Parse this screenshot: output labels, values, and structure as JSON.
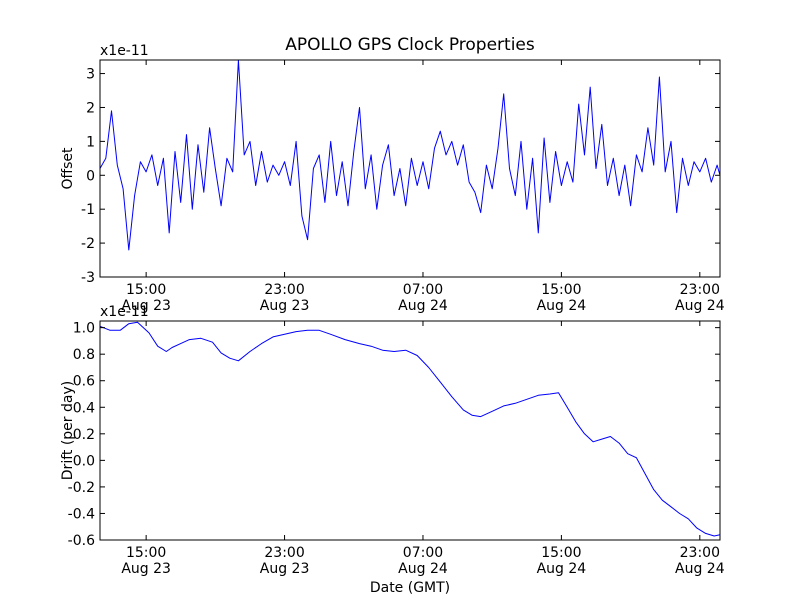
{
  "title": "APOLLO GPS Clock Properties",
  "colors": {
    "series": "#0000ff",
    "axes": "#000000",
    "background": "#ffffff"
  },
  "chart_data": [
    {
      "type": "line",
      "ylabel": "Offset",
      "xlabel": "",
      "offset_label": "x1e-11",
      "ylim": [
        -3,
        3.4
      ],
      "yticks": [
        "3",
        "2",
        "1",
        "0",
        "-1",
        "-2",
        "-3"
      ],
      "ytick_values": [
        3,
        2,
        1,
        0,
        -1,
        -2,
        -3
      ],
      "xlim": [
        "2015-08-23T12:20",
        "2015-08-25T00:10"
      ],
      "xticks": [
        {
          "at": "2015-08-23T15:00",
          "time": "15:00",
          "date": "Aug 23"
        },
        {
          "at": "2015-08-23T23:00",
          "time": "23:00",
          "date": "Aug 23"
        },
        {
          "at": "2015-08-24T07:00",
          "time": "07:00",
          "date": "Aug 24"
        },
        {
          "at": "2015-08-24T15:00",
          "time": "15:00",
          "date": "Aug 24"
        },
        {
          "at": "2015-08-24T23:00",
          "time": "23:00",
          "date": "Aug 24"
        }
      ],
      "series": [
        {
          "color": "#0000ff",
          "points": [
            [
              "2015-08-23T12:20",
              0.2
            ],
            [
              "2015-08-23T12:40",
              0.5
            ],
            [
              "2015-08-23T13:00",
              1.9
            ],
            [
              "2015-08-23T13:20",
              0.3
            ],
            [
              "2015-08-23T13:40",
              -0.4
            ],
            [
              "2015-08-23T14:00",
              -2.2
            ],
            [
              "2015-08-23T14:20",
              -0.6
            ],
            [
              "2015-08-23T14:40",
              0.4
            ],
            [
              "2015-08-23T15:00",
              0.1
            ],
            [
              "2015-08-23T15:20",
              0.6
            ],
            [
              "2015-08-23T15:40",
              -0.3
            ],
            [
              "2015-08-23T16:00",
              0.5
            ],
            [
              "2015-08-23T16:20",
              -1.7
            ],
            [
              "2015-08-23T16:40",
              0.7
            ],
            [
              "2015-08-23T17:00",
              -0.8
            ],
            [
              "2015-08-23T17:20",
              1.2
            ],
            [
              "2015-08-23T17:40",
              -1.0
            ],
            [
              "2015-08-23T18:00",
              0.9
            ],
            [
              "2015-08-23T18:20",
              -0.5
            ],
            [
              "2015-08-23T18:40",
              1.4
            ],
            [
              "2015-08-23T19:00",
              0.2
            ],
            [
              "2015-08-23T19:20",
              -0.9
            ],
            [
              "2015-08-23T19:40",
              0.5
            ],
            [
              "2015-08-23T20:00",
              0.1
            ],
            [
              "2015-08-23T20:20",
              3.4
            ],
            [
              "2015-08-23T20:40",
              0.6
            ],
            [
              "2015-08-23T21:00",
              1.0
            ],
            [
              "2015-08-23T21:20",
              -0.3
            ],
            [
              "2015-08-23T21:40",
              0.7
            ],
            [
              "2015-08-23T22:00",
              -0.2
            ],
            [
              "2015-08-23T22:20",
              0.3
            ],
            [
              "2015-08-23T22:40",
              0.0
            ],
            [
              "2015-08-23T23:00",
              0.4
            ],
            [
              "2015-08-23T23:20",
              -0.3
            ],
            [
              "2015-08-23T23:40",
              1.0
            ],
            [
              "2015-08-24T00:00",
              -1.2
            ],
            [
              "2015-08-24T00:20",
              -1.9
            ],
            [
              "2015-08-24T00:40",
              0.2
            ],
            [
              "2015-08-24T01:00",
              0.6
            ],
            [
              "2015-08-24T01:20",
              -0.8
            ],
            [
              "2015-08-24T01:40",
              1.0
            ],
            [
              "2015-08-24T02:00",
              -0.6
            ],
            [
              "2015-08-24T02:20",
              0.4
            ],
            [
              "2015-08-24T02:40",
              -0.9
            ],
            [
              "2015-08-24T03:00",
              0.7
            ],
            [
              "2015-08-24T03:20",
              2.0
            ],
            [
              "2015-08-24T03:40",
              -0.4
            ],
            [
              "2015-08-24T04:00",
              0.6
            ],
            [
              "2015-08-24T04:20",
              -1.0
            ],
            [
              "2015-08-24T04:40",
              0.3
            ],
            [
              "2015-08-24T05:00",
              0.9
            ],
            [
              "2015-08-24T05:20",
              -0.6
            ],
            [
              "2015-08-24T05:40",
              0.2
            ],
            [
              "2015-08-24T06:00",
              -0.9
            ],
            [
              "2015-08-24T06:20",
              0.5
            ],
            [
              "2015-08-24T06:40",
              -0.3
            ],
            [
              "2015-08-24T07:00",
              0.4
            ],
            [
              "2015-08-24T07:20",
              -0.4
            ],
            [
              "2015-08-24T07:40",
              0.8
            ],
            [
              "2015-08-24T08:00",
              1.3
            ],
            [
              "2015-08-24T08:20",
              0.6
            ],
            [
              "2015-08-24T08:40",
              1.0
            ],
            [
              "2015-08-24T09:00",
              0.3
            ],
            [
              "2015-08-24T09:20",
              0.9
            ],
            [
              "2015-08-24T09:40",
              -0.2
            ],
            [
              "2015-08-24T10:00",
              -0.5
            ],
            [
              "2015-08-24T10:20",
              -1.1
            ],
            [
              "2015-08-24T10:40",
              0.3
            ],
            [
              "2015-08-24T11:00",
              -0.4
            ],
            [
              "2015-08-24T11:20",
              0.8
            ],
            [
              "2015-08-24T11:40",
              2.4
            ],
            [
              "2015-08-24T12:00",
              0.2
            ],
            [
              "2015-08-24T12:20",
              -0.6
            ],
            [
              "2015-08-24T12:40",
              1.0
            ],
            [
              "2015-08-24T13:00",
              -1.0
            ],
            [
              "2015-08-24T13:20",
              0.5
            ],
            [
              "2015-08-24T13:40",
              -1.7
            ],
            [
              "2015-08-24T14:00",
              1.1
            ],
            [
              "2015-08-24T14:20",
              -0.8
            ],
            [
              "2015-08-24T14:40",
              0.7
            ],
            [
              "2015-08-24T15:00",
              -0.3
            ],
            [
              "2015-08-24T15:20",
              0.4
            ],
            [
              "2015-08-24T15:40",
              -0.2
            ],
            [
              "2015-08-24T16:00",
              2.1
            ],
            [
              "2015-08-24T16:20",
              0.6
            ],
            [
              "2015-08-24T16:40",
              2.6
            ],
            [
              "2015-08-24T17:00",
              0.2
            ],
            [
              "2015-08-24T17:20",
              1.5
            ],
            [
              "2015-08-24T17:40",
              -0.3
            ],
            [
              "2015-08-24T18:00",
              0.5
            ],
            [
              "2015-08-24T18:20",
              -0.6
            ],
            [
              "2015-08-24T18:40",
              0.3
            ],
            [
              "2015-08-24T19:00",
              -0.9
            ],
            [
              "2015-08-24T19:20",
              0.6
            ],
            [
              "2015-08-24T19:40",
              0.1
            ],
            [
              "2015-08-24T20:00",
              1.4
            ],
            [
              "2015-08-24T20:20",
              0.3
            ],
            [
              "2015-08-24T20:40",
              2.9
            ],
            [
              "2015-08-24T21:00",
              0.1
            ],
            [
              "2015-08-24T21:20",
              1.0
            ],
            [
              "2015-08-24T21:40",
              -1.1
            ],
            [
              "2015-08-24T22:00",
              0.5
            ],
            [
              "2015-08-24T22:20",
              -0.3
            ],
            [
              "2015-08-24T22:40",
              0.4
            ],
            [
              "2015-08-24T23:00",
              0.1
            ],
            [
              "2015-08-24T23:20",
              0.5
            ],
            [
              "2015-08-24T23:40",
              -0.2
            ],
            [
              "2015-08-25T00:00",
              0.3
            ],
            [
              "2015-08-25T00:10",
              0.0
            ]
          ]
        }
      ]
    },
    {
      "type": "line",
      "ylabel": "Drift (per day)",
      "xlabel": "Date (GMT)",
      "offset_label": "x1e-11",
      "ylim": [
        -0.6,
        1.05
      ],
      "yticks": [
        "1.0",
        "0.8",
        "0.6",
        "0.4",
        "0.2",
        "0.0",
        "-0.2",
        "-0.4",
        "-0.6"
      ],
      "ytick_values": [
        1.0,
        0.8,
        0.6,
        0.4,
        0.2,
        0.0,
        -0.2,
        -0.4,
        -0.6
      ],
      "xlim": [
        "2015-08-23T12:20",
        "2015-08-25T00:10"
      ],
      "xticks": [
        {
          "at": "2015-08-23T15:00",
          "time": "15:00",
          "date": "Aug 23"
        },
        {
          "at": "2015-08-23T23:00",
          "time": "23:00",
          "date": "Aug 23"
        },
        {
          "at": "2015-08-24T07:00",
          "time": "07:00",
          "date": "Aug 24"
        },
        {
          "at": "2015-08-24T15:00",
          "time": "15:00",
          "date": "Aug 24"
        },
        {
          "at": "2015-08-24T23:00",
          "time": "23:00",
          "date": "Aug 24"
        }
      ],
      "series": [
        {
          "color": "#0000ff",
          "points": [
            [
              "2015-08-23T12:20",
              1.01
            ],
            [
              "2015-08-23T12:55",
              0.98
            ],
            [
              "2015-08-23T13:30",
              0.98
            ],
            [
              "2015-08-23T14:00",
              1.03
            ],
            [
              "2015-08-23T14:30",
              1.04
            ],
            [
              "2015-08-23T15:10",
              0.96
            ],
            [
              "2015-08-23T15:40",
              0.86
            ],
            [
              "2015-08-23T16:10",
              0.82
            ],
            [
              "2015-08-23T16:30",
              0.85
            ],
            [
              "2015-08-23T17:00",
              0.88
            ],
            [
              "2015-08-23T17:30",
              0.91
            ],
            [
              "2015-08-23T18:10",
              0.92
            ],
            [
              "2015-08-23T18:50",
              0.89
            ],
            [
              "2015-08-23T19:20",
              0.81
            ],
            [
              "2015-08-23T19:50",
              0.77
            ],
            [
              "2015-08-23T20:20",
              0.75
            ],
            [
              "2015-08-23T21:00",
              0.82
            ],
            [
              "2015-08-23T21:40",
              0.88
            ],
            [
              "2015-08-23T22:20",
              0.93
            ],
            [
              "2015-08-23T23:00",
              0.95
            ],
            [
              "2015-08-23T23:40",
              0.97
            ],
            [
              "2015-08-24T00:20",
              0.98
            ],
            [
              "2015-08-24T01:00",
              0.98
            ],
            [
              "2015-08-24T01:40",
              0.95
            ],
            [
              "2015-08-24T02:30",
              0.91
            ],
            [
              "2015-08-24T03:20",
              0.88
            ],
            [
              "2015-08-24T04:00",
              0.86
            ],
            [
              "2015-08-24T04:40",
              0.83
            ],
            [
              "2015-08-24T05:20",
              0.82
            ],
            [
              "2015-08-24T06:00",
              0.83
            ],
            [
              "2015-08-24T06:40",
              0.79
            ],
            [
              "2015-08-24T07:20",
              0.7
            ],
            [
              "2015-08-24T08:00",
              0.59
            ],
            [
              "2015-08-24T08:40",
              0.48
            ],
            [
              "2015-08-24T09:20",
              0.38
            ],
            [
              "2015-08-24T09:50",
              0.34
            ],
            [
              "2015-08-24T10:20",
              0.33
            ],
            [
              "2015-08-24T11:00",
              0.37
            ],
            [
              "2015-08-24T11:40",
              0.41
            ],
            [
              "2015-08-24T12:20",
              0.43
            ],
            [
              "2015-08-24T13:00",
              0.46
            ],
            [
              "2015-08-24T13:40",
              0.49
            ],
            [
              "2015-08-24T14:20",
              0.5
            ],
            [
              "2015-08-24T14:50",
              0.51
            ],
            [
              "2015-08-24T15:20",
              0.4
            ],
            [
              "2015-08-24T15:50",
              0.29
            ],
            [
              "2015-08-24T16:20",
              0.2
            ],
            [
              "2015-08-24T16:50",
              0.14
            ],
            [
              "2015-08-24T17:20",
              0.16
            ],
            [
              "2015-08-24T17:50",
              0.18
            ],
            [
              "2015-08-24T18:20",
              0.13
            ],
            [
              "2015-08-24T18:50",
              0.05
            ],
            [
              "2015-08-24T19:20",
              0.02
            ],
            [
              "2015-08-24T19:50",
              -0.1
            ],
            [
              "2015-08-24T20:20",
              -0.22
            ],
            [
              "2015-08-24T20:50",
              -0.3
            ],
            [
              "2015-08-24T21:20",
              -0.35
            ],
            [
              "2015-08-24T21:50",
              -0.4
            ],
            [
              "2015-08-24T22:20",
              -0.44
            ],
            [
              "2015-08-24T22:50",
              -0.51
            ],
            [
              "2015-08-24T23:20",
              -0.55
            ],
            [
              "2015-08-24T23:50",
              -0.57
            ],
            [
              "2015-08-25T00:10",
              -0.56
            ]
          ]
        }
      ]
    }
  ]
}
